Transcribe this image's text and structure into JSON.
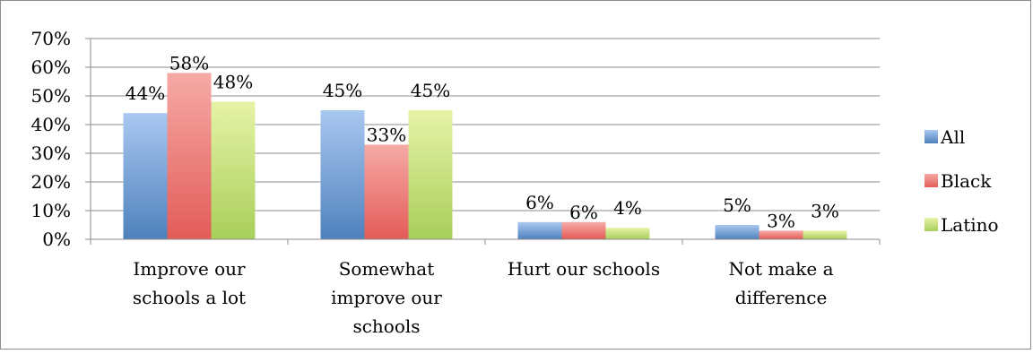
{
  "chart_data": {
    "type": "bar",
    "title": "",
    "xlabel": "",
    "ylabel": "",
    "categories": [
      [
        "Improve our",
        "schools a lot"
      ],
      [
        "Somewhat",
        "improve our",
        "schools"
      ],
      [
        "Hurt our schools"
      ],
      [
        "Not make a",
        "difference"
      ]
    ],
    "series": [
      {
        "name": "All",
        "values": [
          44,
          45,
          6,
          5
        ],
        "labels": [
          "44%",
          "45%",
          "6%",
          "5%"
        ],
        "color": "#4f81bd",
        "light": "#a9c8f0"
      },
      {
        "name": "Black",
        "values": [
          58,
          33,
          6,
          3
        ],
        "labels": [
          "58%",
          "33%",
          "6%",
          "3%"
        ],
        "color": "#e35c57",
        "light": "#f6aaa6"
      },
      {
        "name": "Latino",
        "values": [
          48,
          45,
          4,
          3
        ],
        "labels": [
          "48%",
          "45%",
          "4%",
          "3%"
        ],
        "color": "#a8cf5b",
        "light": "#e6f3a6"
      }
    ],
    "ylim": [
      0,
      70
    ],
    "yticks": [
      "0%",
      "10%",
      "20%",
      "30%",
      "40%",
      "50%",
      "60%",
      "70%"
    ],
    "grid": true,
    "legend_position": "right"
  }
}
